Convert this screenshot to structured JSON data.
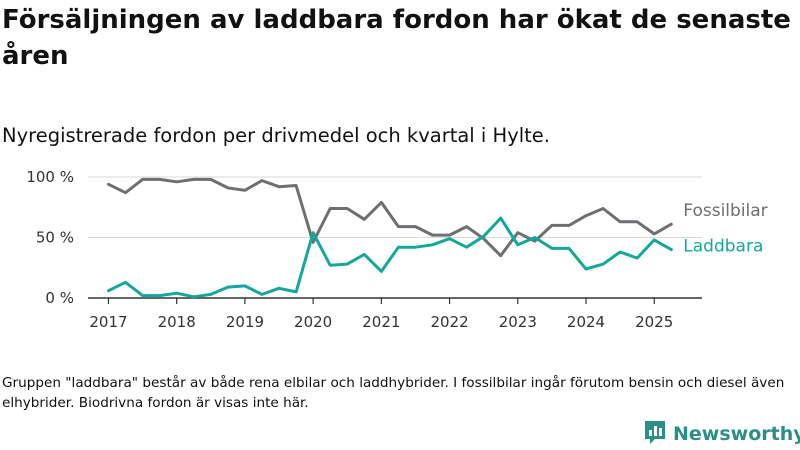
{
  "header": {
    "title": "Försäljningen av laddbara fordon har ökat de senaste åren",
    "subtitle": "Nyregistrerade fordon per drivmedel och kvartal i Hylte."
  },
  "footnote": "Gruppen \"laddbara\" består av både rena elbilar och laddhybrider. I fossilbilar ingår förutom bensin och diesel även elhybrider. Biodrivna fordon är visas inte här.",
  "brand": {
    "name": "Newsworthy",
    "icon": "newsworthy-logo-icon",
    "color": "#2b8f86"
  },
  "chart_data": {
    "type": "line",
    "title": "Nyregistrerade fordon per drivmedel och kvartal i Hylte.",
    "xlabel": "",
    "ylabel": "",
    "x": [
      "2017 Q1",
      "2017 Q2",
      "2017 Q3",
      "2017 Q4",
      "2018 Q1",
      "2018 Q2",
      "2018 Q3",
      "2018 Q4",
      "2019 Q1",
      "2019 Q2",
      "2019 Q3",
      "2019 Q4",
      "2020 Q1",
      "2020 Q2",
      "2020 Q3",
      "2020 Q4",
      "2021 Q1",
      "2021 Q2",
      "2021 Q3",
      "2021 Q4",
      "2022 Q1",
      "2022 Q2",
      "2022 Q3",
      "2022 Q4",
      "2023 Q1",
      "2023 Q2",
      "2023 Q3",
      "2023 Q4",
      "2024 Q1",
      "2024 Q2",
      "2024 Q3",
      "2024 Q4",
      "2025 Q1",
      "2025 Q2"
    ],
    "x_ticks": [
      "2017",
      "2018",
      "2019",
      "2020",
      "2021",
      "2022",
      "2023",
      "2024",
      "2025"
    ],
    "y_ticks": [
      {
        "value": 0,
        "label": "0 %"
      },
      {
        "value": 50,
        "label": "50 %"
      },
      {
        "value": 100,
        "label": "100 %"
      }
    ],
    "ylim": [
      0,
      100
    ],
    "grid": true,
    "legend": "direct labels at line ends",
    "series": [
      {
        "name": "Fossilbilar",
        "color": "#6e6e73",
        "values": [
          94,
          87,
          98,
          98,
          96,
          98,
          98,
          91,
          89,
          97,
          92,
          93,
          46,
          74,
          74,
          65,
          79,
          59,
          59,
          52,
          52,
          59,
          49,
          35,
          54,
          47,
          60,
          60,
          68,
          74,
          63,
          63,
          53,
          61
        ]
      },
      {
        "name": "Laddbara",
        "color": "#14a89a",
        "values": [
          6,
          13,
          2,
          2,
          4,
          1,
          3,
          9,
          10,
          3,
          8,
          5,
          54,
          27,
          28,
          36,
          22,
          42,
          42,
          44,
          49,
          42,
          51,
          66,
          44,
          50,
          41,
          41,
          24,
          28,
          38,
          33,
          48,
          40
        ]
      }
    ]
  }
}
